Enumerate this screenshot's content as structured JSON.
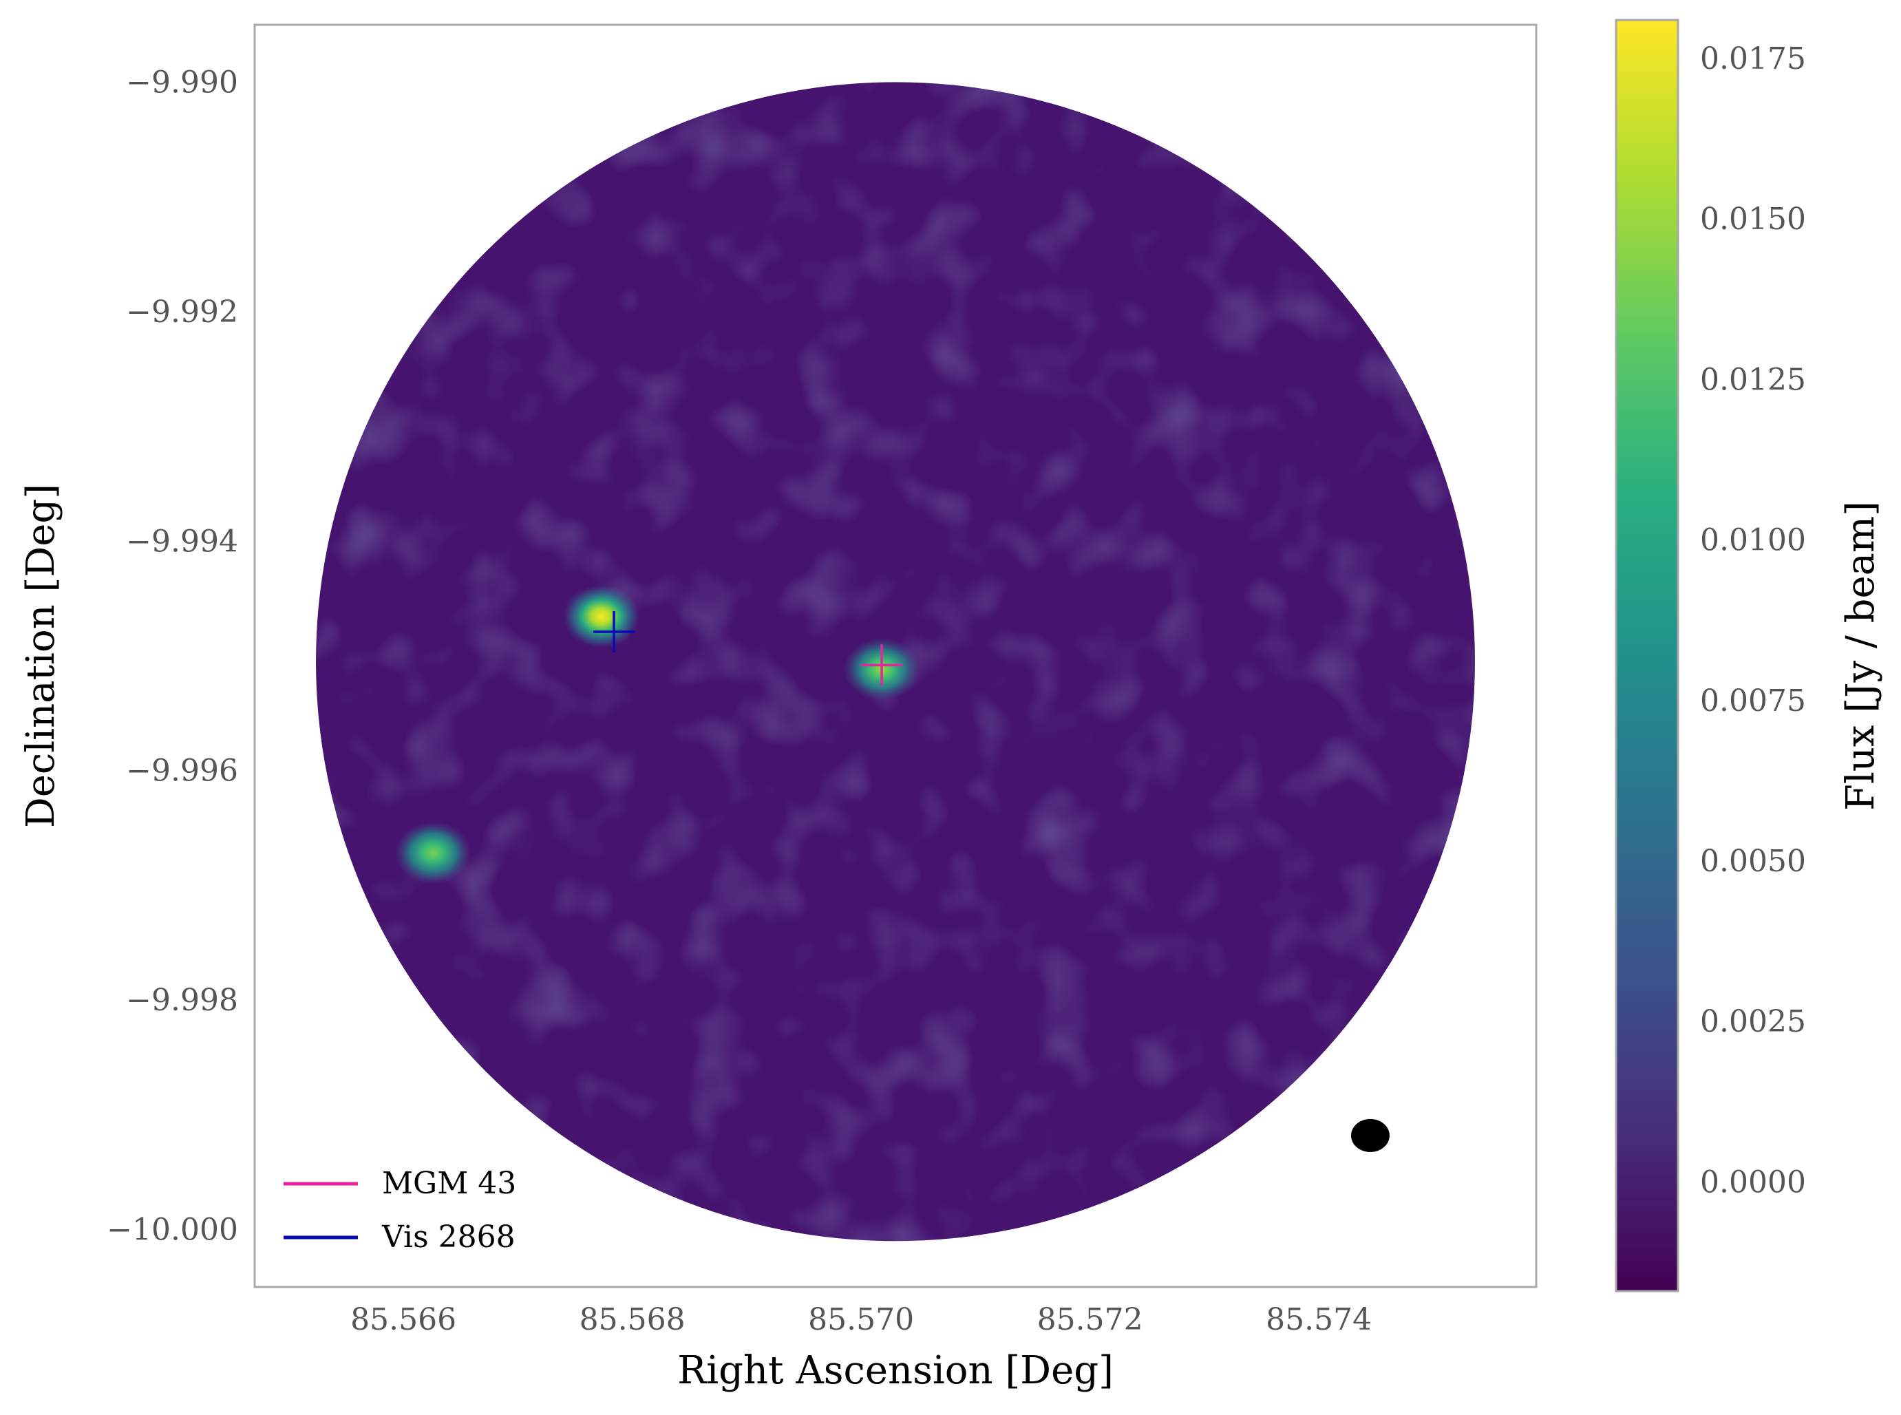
{
  "chart_data": {
    "type": "heatmap",
    "title": "",
    "xlabel": "Right Ascension [Deg]",
    "ylabel": "Declination [Deg]",
    "xlim": [
      85.5647,
      85.5759
    ],
    "ylim": [
      -10.0005,
      -9.9895
    ],
    "x_ticks": [
      85.566,
      85.568,
      85.57,
      85.572,
      85.574
    ],
    "x_tick_labels": [
      "85.566",
      "85.568",
      "85.570",
      "85.572",
      "85.574"
    ],
    "y_ticks": [
      -9.99,
      -9.992,
      -9.994,
      -9.996,
      -9.998,
      -10.0
    ],
    "y_tick_labels": [
      "−9.990",
      "−9.992",
      "−9.994",
      "−9.996",
      "−9.998",
      "−10.000"
    ],
    "grid": false,
    "colormap": "viridis",
    "colorbar": {
      "label": "Flux [Jy / beam]",
      "range": [
        -0.0017,
        0.0181
      ],
      "ticks": [
        0.0,
        0.0025,
        0.005,
        0.0075,
        0.01,
        0.0125,
        0.015,
        0.0175
      ],
      "tick_labels": [
        "0.0000",
        "0.0025",
        "0.0050",
        "0.0075",
        "0.0100",
        "0.0125",
        "0.0150",
        "0.0175"
      ]
    },
    "field_of_view": {
      "shape": "circle",
      "center_ra": 85.5703,
      "center_dec": -9.99505,
      "radius_dec": 0.00505
    },
    "background_level": -0.0003,
    "sources": [
      {
        "ra": 85.56773,
        "dec": -9.99462,
        "peak_flux": 0.0178
      },
      {
        "ra": 85.57018,
        "dec": -9.99508,
        "peak_flux": 0.015
      },
      {
        "ra": 85.56626,
        "dec": -9.99668,
        "peak_flux": 0.014
      }
    ],
    "markers": [
      {
        "name": "MGM 43",
        "ra": 85.57018,
        "dec": -9.99508,
        "color": "#e8249c",
        "symbol": "+"
      },
      {
        "name": "Vis 2868",
        "ra": 85.56784,
        "dec": -9.99479,
        "color": "#0a0ab4",
        "symbol": "+"
      }
    ],
    "beam": {
      "ra": 85.57445,
      "dec": -9.99918,
      "color": "#000000"
    },
    "legend": {
      "position": "lower-left",
      "entries": [
        {
          "label": "MGM 43",
          "color": "#e8249c"
        },
        {
          "label": "Vis 2868",
          "color": "#0a0ab4"
        }
      ]
    }
  }
}
